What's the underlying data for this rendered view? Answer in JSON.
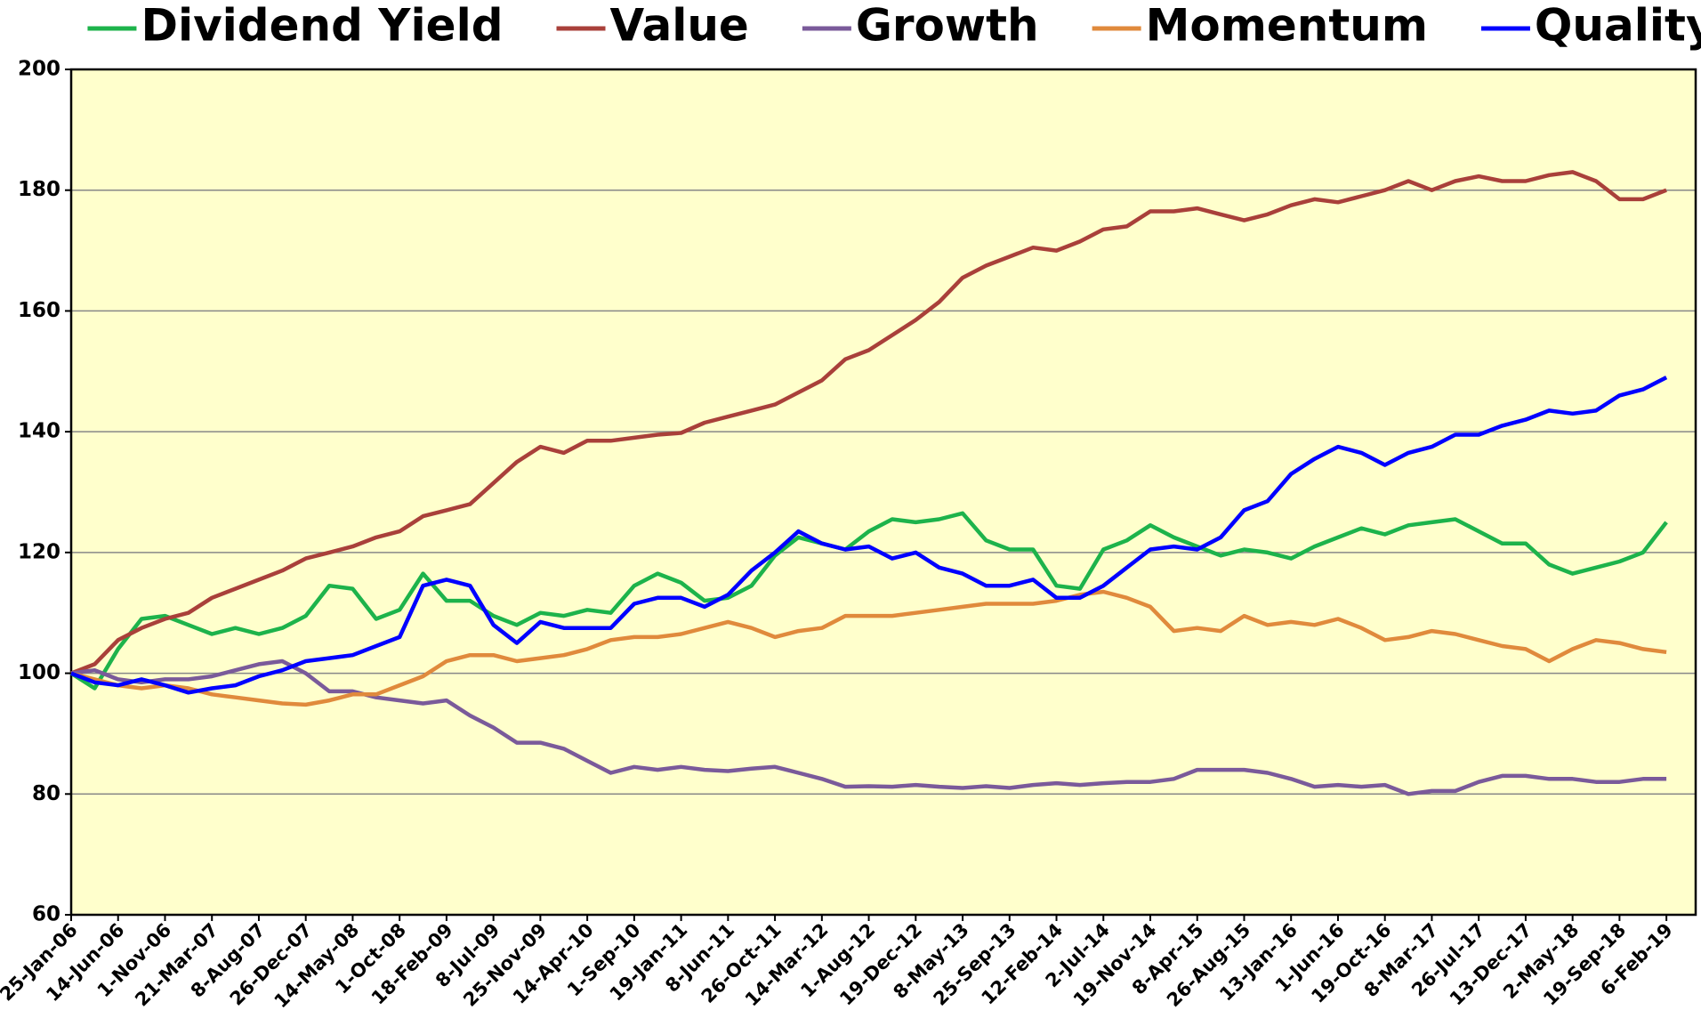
{
  "chart_data": {
    "type": "line",
    "categories": [
      "25-Jan-06",
      null,
      "14-Jun-06",
      null,
      "1-Nov-06",
      null,
      "21-Mar-07",
      null,
      "8-Aug-07",
      null,
      "26-Dec-07",
      null,
      "14-May-08",
      null,
      "1-Oct-08",
      null,
      "18-Feb-09",
      null,
      "8-Jul-09",
      null,
      "25-Nov-09",
      null,
      "14-Apr-10",
      null,
      "1-Sep-10",
      null,
      "19-Jan-11",
      null,
      "8-Jun-11",
      null,
      "26-Oct-11",
      null,
      "14-Mar-12",
      null,
      "1-Aug-12",
      null,
      "19-Dec-12",
      null,
      "8-May-13",
      null,
      "25-Sep-13",
      null,
      "12-Feb-14",
      null,
      "2-Jul-14",
      null,
      "19-Nov-14",
      null,
      "8-Apr-15",
      null,
      "26-Aug-15",
      null,
      "13-Jan-16",
      null,
      "1-Jun-16",
      null,
      "19-Oct-16",
      null,
      "8-Mar-17",
      null,
      "26-Jul-17",
      null,
      "13-Dec-17",
      null,
      "2-May-18",
      null,
      "19-Sep-18",
      null,
      "6-Feb-19"
    ],
    "series": [
      {
        "name": "Dividend Yield",
        "color": "#1db34b",
        "values": [
          100,
          97.5,
          104,
          109,
          109.5,
          108,
          106.5,
          107.5,
          106.5,
          107.5,
          109.5,
          114.5,
          114,
          109,
          110.5,
          116.5,
          112,
          112,
          109.5,
          108,
          110,
          109.5,
          110.5,
          110,
          114.5,
          116.5,
          115,
          112,
          112.5,
          114.5,
          119.5,
          122.5,
          121.5,
          120.5,
          123.5,
          125.5,
          125,
          125.5,
          126.5,
          122,
          120.5,
          120.5,
          114.5,
          114,
          120.5,
          122,
          124.5,
          122.5,
          121,
          119.5,
          120.5,
          120,
          119,
          121,
          122.5,
          124,
          123,
          124.5,
          125,
          125.5,
          123.5,
          121.5,
          121.5,
          118,
          116.5,
          117.5,
          118.5,
          120,
          125
        ]
      },
      {
        "name": "Value",
        "color": "#a9403a",
        "values": [
          100,
          101.5,
          105.5,
          107.5,
          109,
          110,
          112.5,
          114,
          115.5,
          117,
          119,
          120,
          121,
          122.5,
          123.5,
          126,
          127,
          128,
          131.5,
          135,
          137.5,
          136.5,
          138.5,
          138.5,
          139,
          139.5,
          139.8,
          141.5,
          142.5,
          143.5,
          144.5,
          146.5,
          148.5,
          152,
          153.5,
          156,
          158.5,
          161.5,
          165.5,
          167.5,
          169,
          170.5,
          170,
          171.5,
          173.5,
          174,
          176.5,
          176.5,
          177,
          176,
          175,
          176,
          177.5,
          178.5,
          178,
          179,
          180,
          181.5,
          180,
          181.5,
          182.3,
          181.5,
          181.5,
          182.5,
          183,
          181.5,
          178.5,
          178.5,
          180
        ]
      },
      {
        "name": "Growth",
        "color": "#7a5a9a",
        "values": [
          100,
          100.5,
          99,
          98.5,
          99,
          99,
          99.5,
          100.5,
          101.5,
          102,
          100,
          97,
          97,
          96,
          95.5,
          95,
          95.5,
          93,
          91,
          88.5,
          88.5,
          87.5,
          85.5,
          83.5,
          84.5,
          84,
          84.5,
          84,
          83.8,
          84.2,
          84.5,
          83.5,
          82.5,
          81.2,
          81.3,
          81.2,
          81.5,
          81.2,
          81,
          81.3,
          81,
          81.5,
          81.8,
          81.5,
          81.8,
          82,
          82,
          82.5,
          84,
          84,
          84,
          83.5,
          82.5,
          81.2,
          81.5,
          81.2,
          81.5,
          80,
          80.5,
          80.5,
          82,
          83,
          83,
          82.5,
          82.5,
          82,
          82,
          82.5,
          82.5
        ]
      },
      {
        "name": "Momentum",
        "color": "#e08a3c",
        "values": [
          100,
          99,
          98,
          97.5,
          98,
          97.5,
          96.5,
          96,
          95.5,
          95,
          94.8,
          95.5,
          96.5,
          96.5,
          98,
          99.5,
          102,
          103,
          103,
          102,
          102.5,
          103,
          104,
          105.5,
          106,
          106,
          106.5,
          107.5,
          108.5,
          107.5,
          106,
          107,
          107.5,
          109.5,
          109.5,
          109.5,
          110,
          110.5,
          111,
          111.5,
          111.5,
          111.5,
          112,
          113,
          113.5,
          112.5,
          111,
          107,
          107.5,
          107,
          109.5,
          108,
          108.5,
          108,
          109,
          107.5,
          105.5,
          106,
          107,
          106.5,
          105.5,
          104.5,
          104,
          102,
          104,
          105.5,
          105,
          104,
          103.5
        ]
      },
      {
        "name": "Quality",
        "color": "#0000ff",
        "values": [
          100,
          98.5,
          98,
          99,
          98,
          96.8,
          97.5,
          98,
          99.5,
          100.5,
          102,
          102.5,
          103,
          104.5,
          106,
          114.5,
          115.5,
          114.5,
          108,
          105,
          108.5,
          107.5,
          107.5,
          107.5,
          111.5,
          112.5,
          112.5,
          111,
          113,
          117,
          120,
          123.5,
          121.5,
          120.5,
          121,
          119,
          120,
          117.5,
          116.5,
          114.5,
          114.5,
          115.5,
          112.5,
          112.5,
          114.5,
          117.5,
          120.5,
          121,
          120.5,
          122.5,
          127,
          128.5,
          133,
          135.5,
          137.5,
          136.5,
          134.5,
          136.5,
          137.5,
          139.5,
          139.5,
          141,
          142,
          143.5,
          143,
          143.5,
          146,
          147,
          149
        ]
      }
    ],
    "ylim": [
      60,
      200
    ],
    "yticks": [
      60,
      80,
      100,
      120,
      140,
      160,
      180,
      200
    ],
    "grid": true,
    "legend": "top",
    "background": "#ffffcc"
  }
}
